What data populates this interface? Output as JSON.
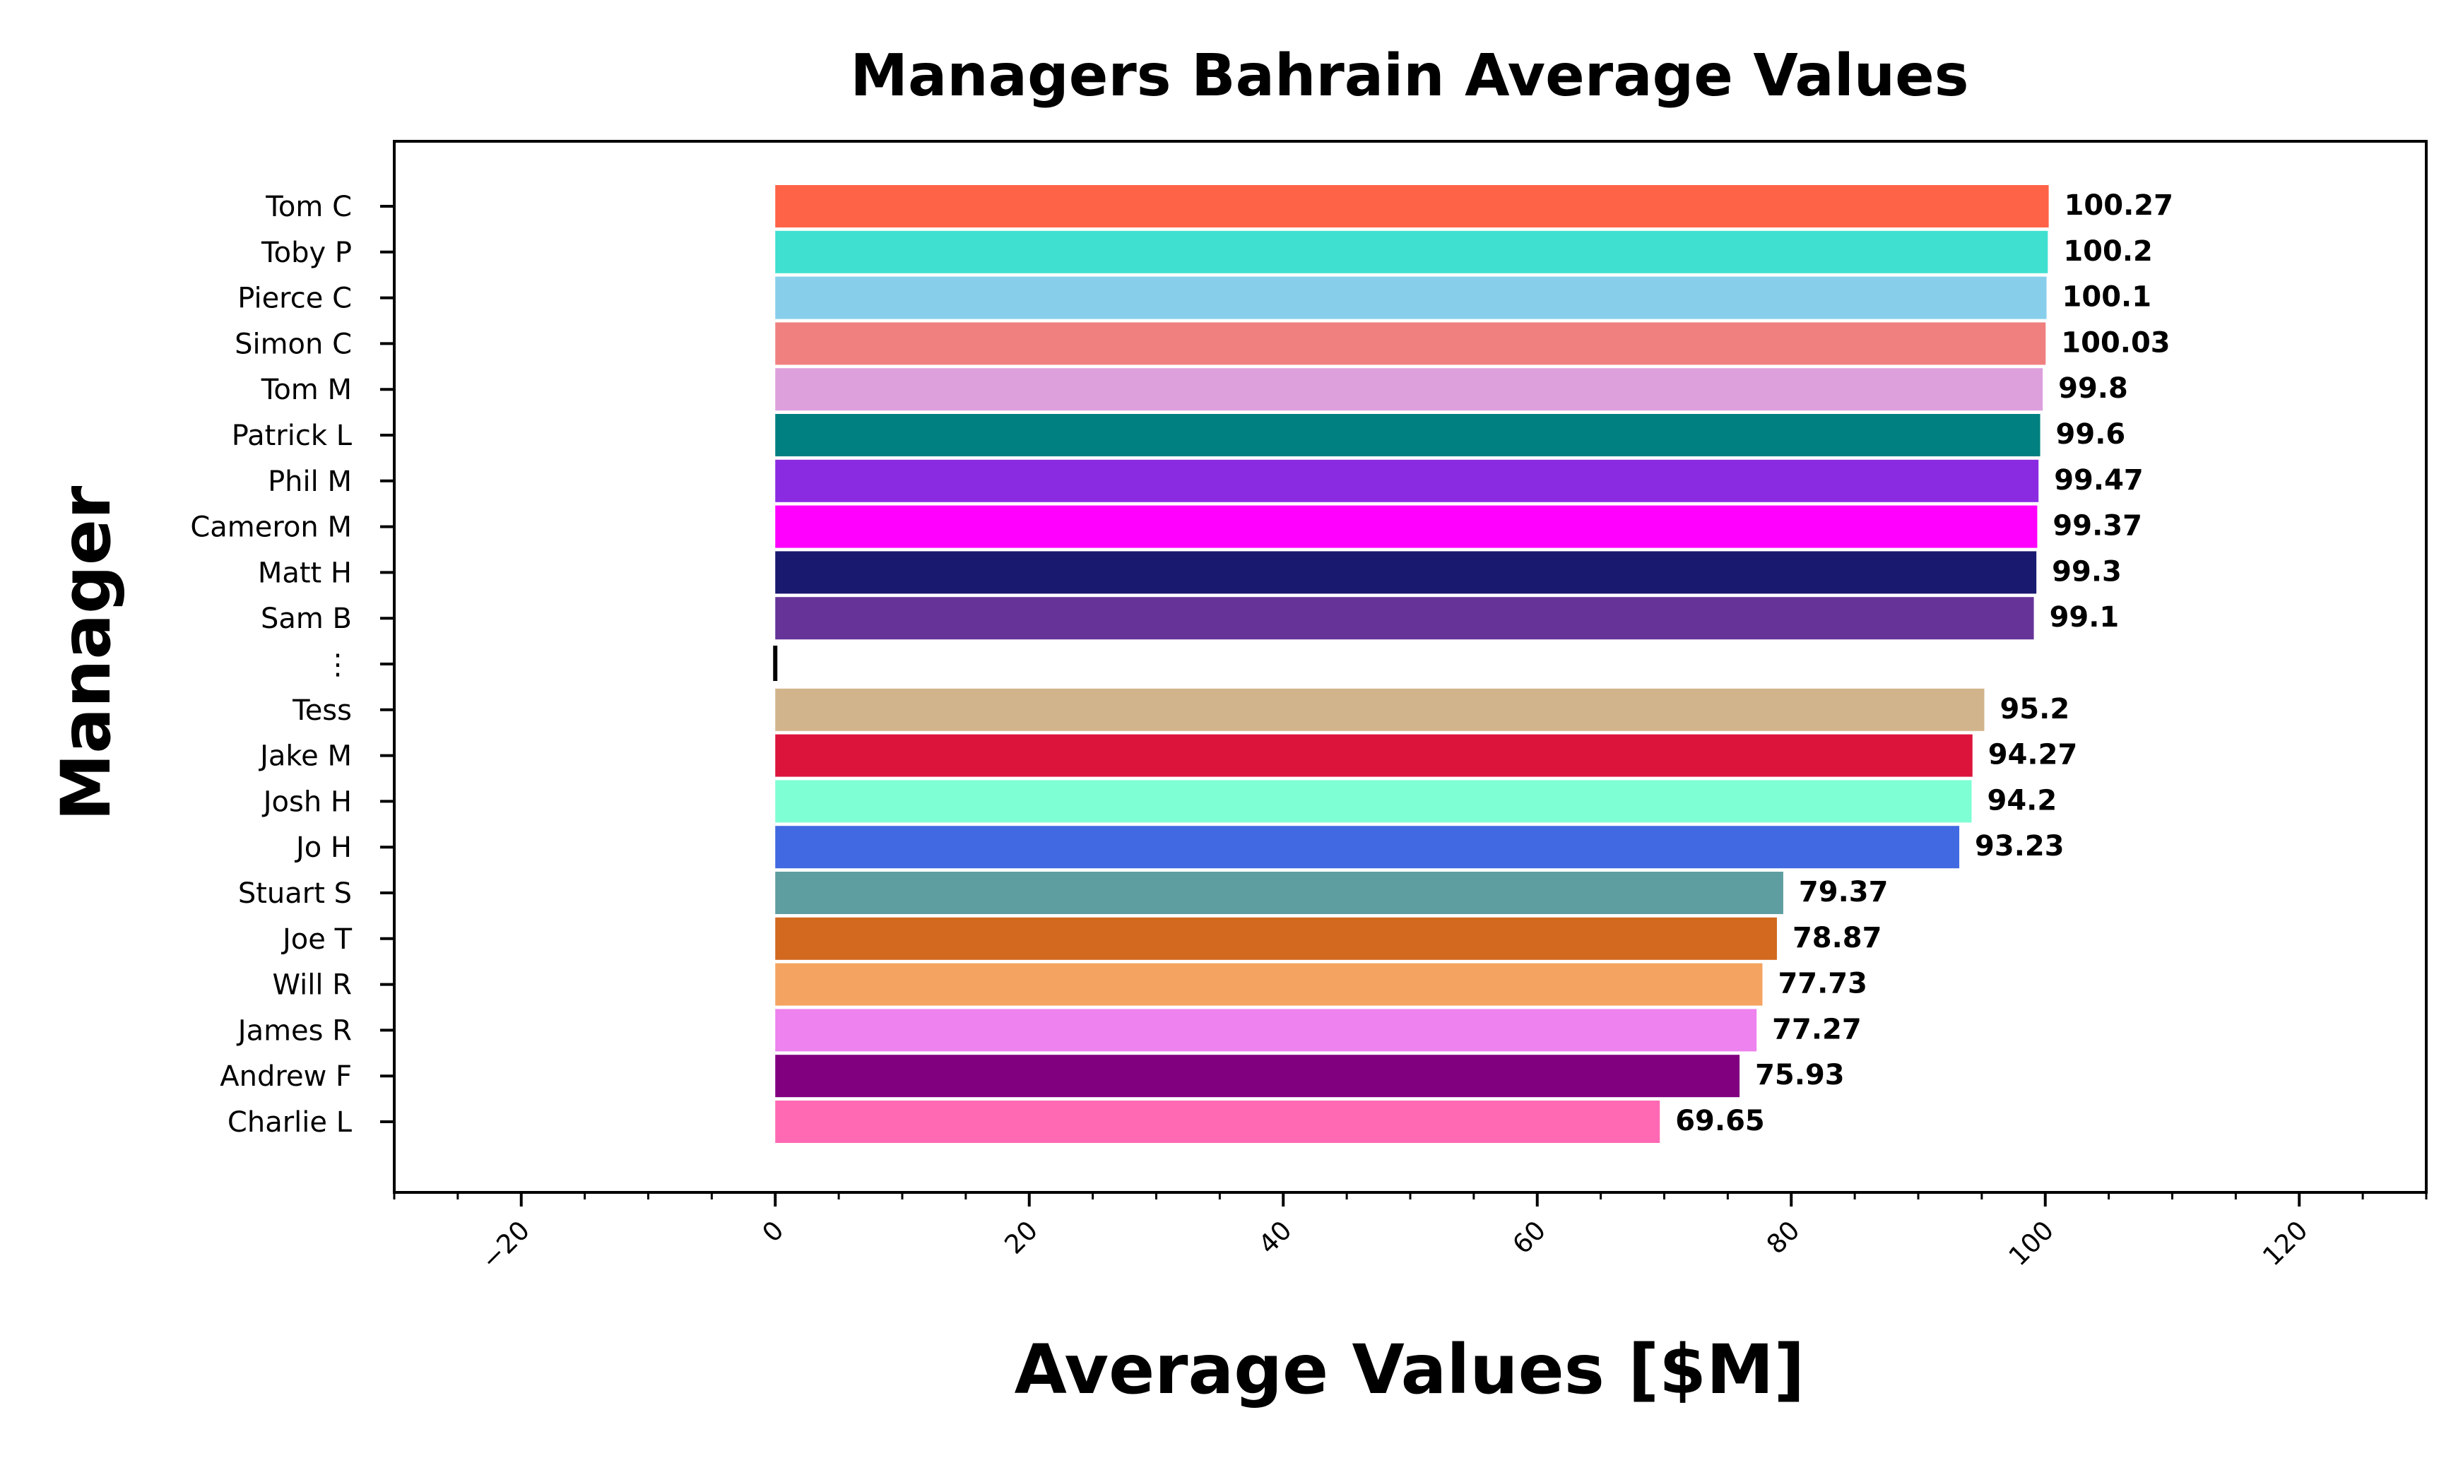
{
  "chart_data": {
    "type": "bar",
    "orientation": "horizontal",
    "title": "Managers Bahrain Average Values",
    "xlabel": "Average Values [$M]",
    "ylabel": "Manager",
    "xlim": [
      -30,
      130
    ],
    "xticks": [
      -20,
      0,
      20,
      40,
      60,
      80,
      100,
      120
    ],
    "xtick_labels": [
      "−20",
      "0",
      "20",
      "40",
      "60",
      "80",
      "100",
      "120"
    ],
    "grid": false,
    "legend": "none",
    "bars": [
      {
        "label": "Tom C",
        "value": 100.27,
        "value_label": "100.27",
        "color": "#FF6347"
      },
      {
        "label": "Toby P",
        "value": 100.2,
        "value_label": "100.2",
        "color": "#40E0D0"
      },
      {
        "label": "Pierce C",
        "value": 100.1,
        "value_label": "100.1",
        "color": "#87CEEB"
      },
      {
        "label": "Simon C",
        "value": 100.03,
        "value_label": "100.03",
        "color": "#F08080"
      },
      {
        "label": "Tom M",
        "value": 99.8,
        "value_label": "99.8",
        "color": "#DDA0DD"
      },
      {
        "label": "Patrick L",
        "value": 99.6,
        "value_label": "99.6",
        "color": "#008080"
      },
      {
        "label": "Phil M",
        "value": 99.47,
        "value_label": "99.47",
        "color": "#8A2BE2"
      },
      {
        "label": "Cameron M",
        "value": 99.37,
        "value_label": "99.37",
        "color": "#FF00FF"
      },
      {
        "label": "Matt H",
        "value": 99.3,
        "value_label": "99.3",
        "color": "#191970"
      },
      {
        "label": "Sam B",
        "value": 99.1,
        "value_label": "99.1",
        "color": "#663399"
      },
      {
        "label": "⋮",
        "value": 0,
        "value_label": null,
        "color": "#000000",
        "separator": true
      },
      {
        "label": "Tess",
        "value": 95.2,
        "value_label": "95.2",
        "color": "#D2B48C"
      },
      {
        "label": "Jake M",
        "value": 94.27,
        "value_label": "94.27",
        "color": "#DC143C"
      },
      {
        "label": "Josh H",
        "value": 94.2,
        "value_label": "94.2",
        "color": "#7FFFD4"
      },
      {
        "label": "Jo H",
        "value": 93.23,
        "value_label": "93.23",
        "color": "#4169E1"
      },
      {
        "label": "Stuart S",
        "value": 79.37,
        "value_label": "79.37",
        "color": "#5F9EA0"
      },
      {
        "label": "Joe T",
        "value": 78.87,
        "value_label": "78.87",
        "color": "#D2691E"
      },
      {
        "label": "Will R",
        "value": 77.73,
        "value_label": "77.73",
        "color": "#F4A460"
      },
      {
        "label": "James R",
        "value": 77.27,
        "value_label": "77.27",
        "color": "#EE82EE"
      },
      {
        "label": "Andrew F",
        "value": 75.93,
        "value_label": "75.93",
        "color": "#800080"
      },
      {
        "label": "Charlie L",
        "value": 69.65,
        "value_label": "69.65",
        "color": "#FF69B4"
      }
    ]
  }
}
